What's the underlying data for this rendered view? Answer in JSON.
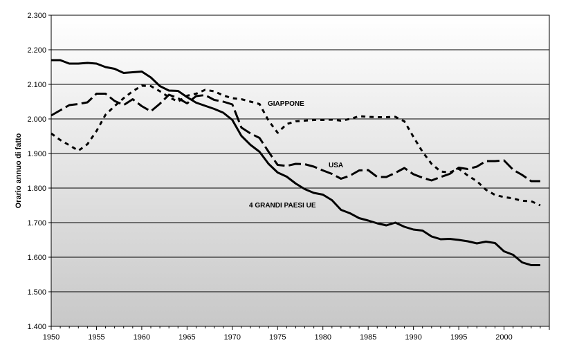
{
  "chart_data": {
    "type": "line",
    "title": "",
    "xlabel": "",
    "ylabel": "Orario annuo di fatto",
    "xlim": [
      1950,
      2005
    ],
    "ylim": [
      1400,
      2300
    ],
    "grid": true,
    "legend": "inline labels",
    "x_ticks": [
      "1950",
      "1955",
      "1960",
      "1965",
      "1970",
      "1975",
      "1980",
      "1985",
      "1990",
      "1995",
      "2000"
    ],
    "y_ticks": [
      "1.400",
      "1.500",
      "1.600",
      "1.700",
      "1.800",
      "1.900",
      "2.000",
      "2.100",
      "2.200",
      "2.300"
    ],
    "x": [
      1950,
      1951,
      1952,
      1953,
      1954,
      1955,
      1956,
      1957,
      1958,
      1959,
      1960,
      1961,
      1962,
      1963,
      1964,
      1965,
      1966,
      1967,
      1968,
      1969,
      1970,
      1971,
      1972,
      1973,
      1974,
      1975,
      1976,
      1977,
      1978,
      1979,
      1980,
      1981,
      1982,
      1983,
      1984,
      1985,
      1986,
      1987,
      1988,
      1989,
      1990,
      1991,
      1992,
      1993,
      1994,
      1995,
      1996,
      1997,
      1998,
      1999,
      2000,
      2001,
      2002,
      2003,
      2004
    ],
    "series": [
      {
        "name": "4 GRANDI PAESI UE",
        "style": "solid",
        "values": [
          2170,
          2170,
          2160,
          2160,
          2162,
          2160,
          2150,
          2145,
          2133,
          2135,
          2137,
          2120,
          2095,
          2082,
          2081,
          2063,
          2047,
          2038,
          2029,
          2018,
          1997,
          1951,
          1925,
          1905,
          1870,
          1845,
          1833,
          1813,
          1797,
          1786,
          1781,
          1765,
          1737,
          1727,
          1713,
          1706,
          1698,
          1692,
          1700,
          1688,
          1680,
          1677,
          1660,
          1652,
          1653,
          1650,
          1646,
          1640,
          1645,
          1641,
          1617,
          1607,
          1585,
          1577,
          1577
        ]
      },
      {
        "name": "USA",
        "style": "long-dash",
        "values": [
          2010,
          2025,
          2040,
          2043,
          2048,
          2073,
          2073,
          2052,
          2040,
          2057,
          2037,
          2022,
          2044,
          2070,
          2060,
          2045,
          2066,
          2069,
          2055,
          2050,
          2042,
          1975,
          1958,
          1945,
          1905,
          1867,
          1864,
          1870,
          1869,
          1862,
          1851,
          1841,
          1827,
          1836,
          1851,
          1852,
          1832,
          1832,
          1844,
          1858,
          1840,
          1830,
          1822,
          1832,
          1841,
          1859,
          1855,
          1862,
          1878,
          1878,
          1880,
          1853,
          1838,
          1820,
          1820
        ]
      },
      {
        "name": "GIAPPONE",
        "style": "short-dash",
        "values": [
          1958,
          1939,
          1924,
          1908,
          1927,
          1965,
          2012,
          2037,
          2060,
          2080,
          2096,
          2095,
          2080,
          2063,
          2050,
          2067,
          2073,
          2084,
          2080,
          2068,
          2060,
          2057,
          2050,
          2043,
          1995,
          1960,
          1985,
          1993,
          1995,
          1997,
          1997,
          1998,
          1995,
          2000,
          2008,
          2006,
          2005,
          2005,
          2006,
          1993,
          1948,
          1905,
          1870,
          1848,
          1845,
          1856,
          1836,
          1820,
          1795,
          1780,
          1774,
          1770,
          1763,
          1762,
          1750
        ]
      }
    ],
    "labels": [
      "GIAPPONE",
      "USA",
      "4 GRANDI PAESI UE"
    ]
  }
}
